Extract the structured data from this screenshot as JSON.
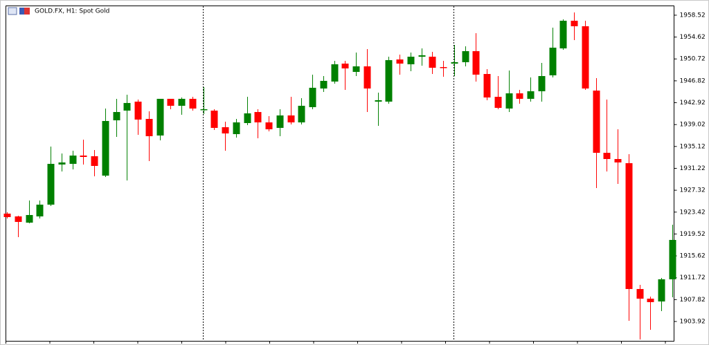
{
  "chart_data": {
    "type": "candlestick",
    "title": "GOLD.FX, H1:  Spot Gold",
    "up_color": "#008000",
    "down_color": "#ff0000",
    "ylim": [
      1900.47,
      1960.24
    ],
    "yticks": [
      1903.92,
      1907.82,
      1911.72,
      1915.62,
      1919.52,
      1923.42,
      1927.32,
      1931.22,
      1935.12,
      1939.02,
      1942.92,
      1946.82,
      1950.72,
      1954.62,
      1958.52
    ],
    "open": [
      1923.15,
      1922.65,
      1921.54,
      1922.65,
      1924.75,
      1931.9,
      1932.02,
      1933.5,
      1933.38,
      1929.92,
      1939.78,
      1941.51,
      1943.11,
      1940.03,
      1937.07,
      1943.61,
      1942.37,
      1943.61,
      1941.63,
      1941.51,
      1938.55,
      1937.32,
      1939.29,
      1941.26,
      1939.41,
      1938.43,
      1940.65,
      1939.41,
      1942.13,
      1945.45,
      1946.69,
      1949.89,
      1948.41,
      1949.4,
      1943.11,
      1943.11,
      1950.63,
      1949.77,
      1951.12,
      1951.12,
      1949.27,
      1949.89,
      1950.14,
      1952.11,
      1948.04,
      1943.97,
      1941.88,
      1944.59,
      1943.61,
      1944.96,
      1947.8,
      1952.6,
      1957.53,
      1956.55,
      1945.08,
      1933.99,
      1932.88,
      1932.14,
      1909.71,
      1907.99,
      1907.49,
      1911.44
    ],
    "high": [
      1923.39,
      1922.78,
      1925.49,
      1925.49,
      1935.1,
      1933.87,
      1934.36,
      1936.33,
      1934.48,
      1941.88,
      1943.61,
      1944.34,
      1943.48,
      1941.39,
      1943.61,
      1943.61,
      1943.85,
      1943.97,
      1945.7,
      1941.76,
      1939.54,
      1940.03,
      1943.97,
      1941.76,
      1940.52,
      1941.76,
      1943.97,
      1943.73,
      1947.92,
      1947.67,
      1950.38,
      1950.38,
      1951.86,
      1952.48,
      1944.71,
      1951.12,
      1951.49,
      1951.86,
      1952.6,
      1951.99,
      1950.38,
      1953.22,
      1952.97,
      1955.31,
      1948.9,
      1947.67,
      1948.66,
      1945.21,
      1947.43,
      1950.01,
      1956.3,
      1957.78,
      1959.01,
      1957.53,
      1947.3,
      1943.48,
      1938.18,
      1933.75,
      1910.45,
      1908.36,
      1911.68,
      1921.17
    ],
    "low": [
      1922.28,
      1918.96,
      1921.42,
      1922.28,
      1924.5,
      1930.66,
      1931.03,
      1931.9,
      1929.8,
      1929.68,
      1936.83,
      1929.06,
      1937.2,
      1932.51,
      1936.21,
      1941.76,
      1940.77,
      1941.51,
      1940.89,
      1938.06,
      1934.36,
      1936.7,
      1938.92,
      1936.58,
      1937.81,
      1936.95,
      1939.04,
      1939.04,
      1941.76,
      1944.84,
      1946.32,
      1945.21,
      1947.67,
      1941.26,
      1938.8,
      1942.74,
      1947.92,
      1948.54,
      1949.52,
      1948.04,
      1947.55,
      1947.67,
      1949.4,
      1946.69,
      1943.36,
      1941.76,
      1941.26,
      1942.74,
      1943.11,
      1943.11,
      1947.43,
      1952.36,
      1954.08,
      1945.21,
      1927.71,
      1930.66,
      1928.45,
      1904.04,
      1900.71,
      1902.44,
      1905.77,
      1908.23
    ],
    "close": [
      1922.53,
      1921.67,
      1922.9,
      1924.75,
      1932.02,
      1932.27,
      1933.5,
      1933.25,
      1931.65,
      1939.66,
      1941.26,
      1942.87,
      1939.91,
      1936.95,
      1943.61,
      1942.37,
      1943.61,
      1941.88,
      1941.76,
      1938.43,
      1937.44,
      1939.41,
      1941.02,
      1939.41,
      1938.18,
      1940.65,
      1939.41,
      1942.37,
      1945.58,
      1946.81,
      1949.77,
      1949.03,
      1949.4,
      1945.45,
      1943.36,
      1950.51,
      1949.89,
      1951.12,
      1951.37,
      1949.15,
      1949.15,
      1950.14,
      1952.11,
      1947.92,
      1943.85,
      1942.0,
      1944.59,
      1943.61,
      1944.96,
      1947.67,
      1952.73,
      1957.53,
      1956.55,
      1945.45,
      1933.99,
      1932.88,
      1932.27,
      1909.71,
      1907.99,
      1907.37,
      1911.44,
      1918.46
    ]
  }
}
